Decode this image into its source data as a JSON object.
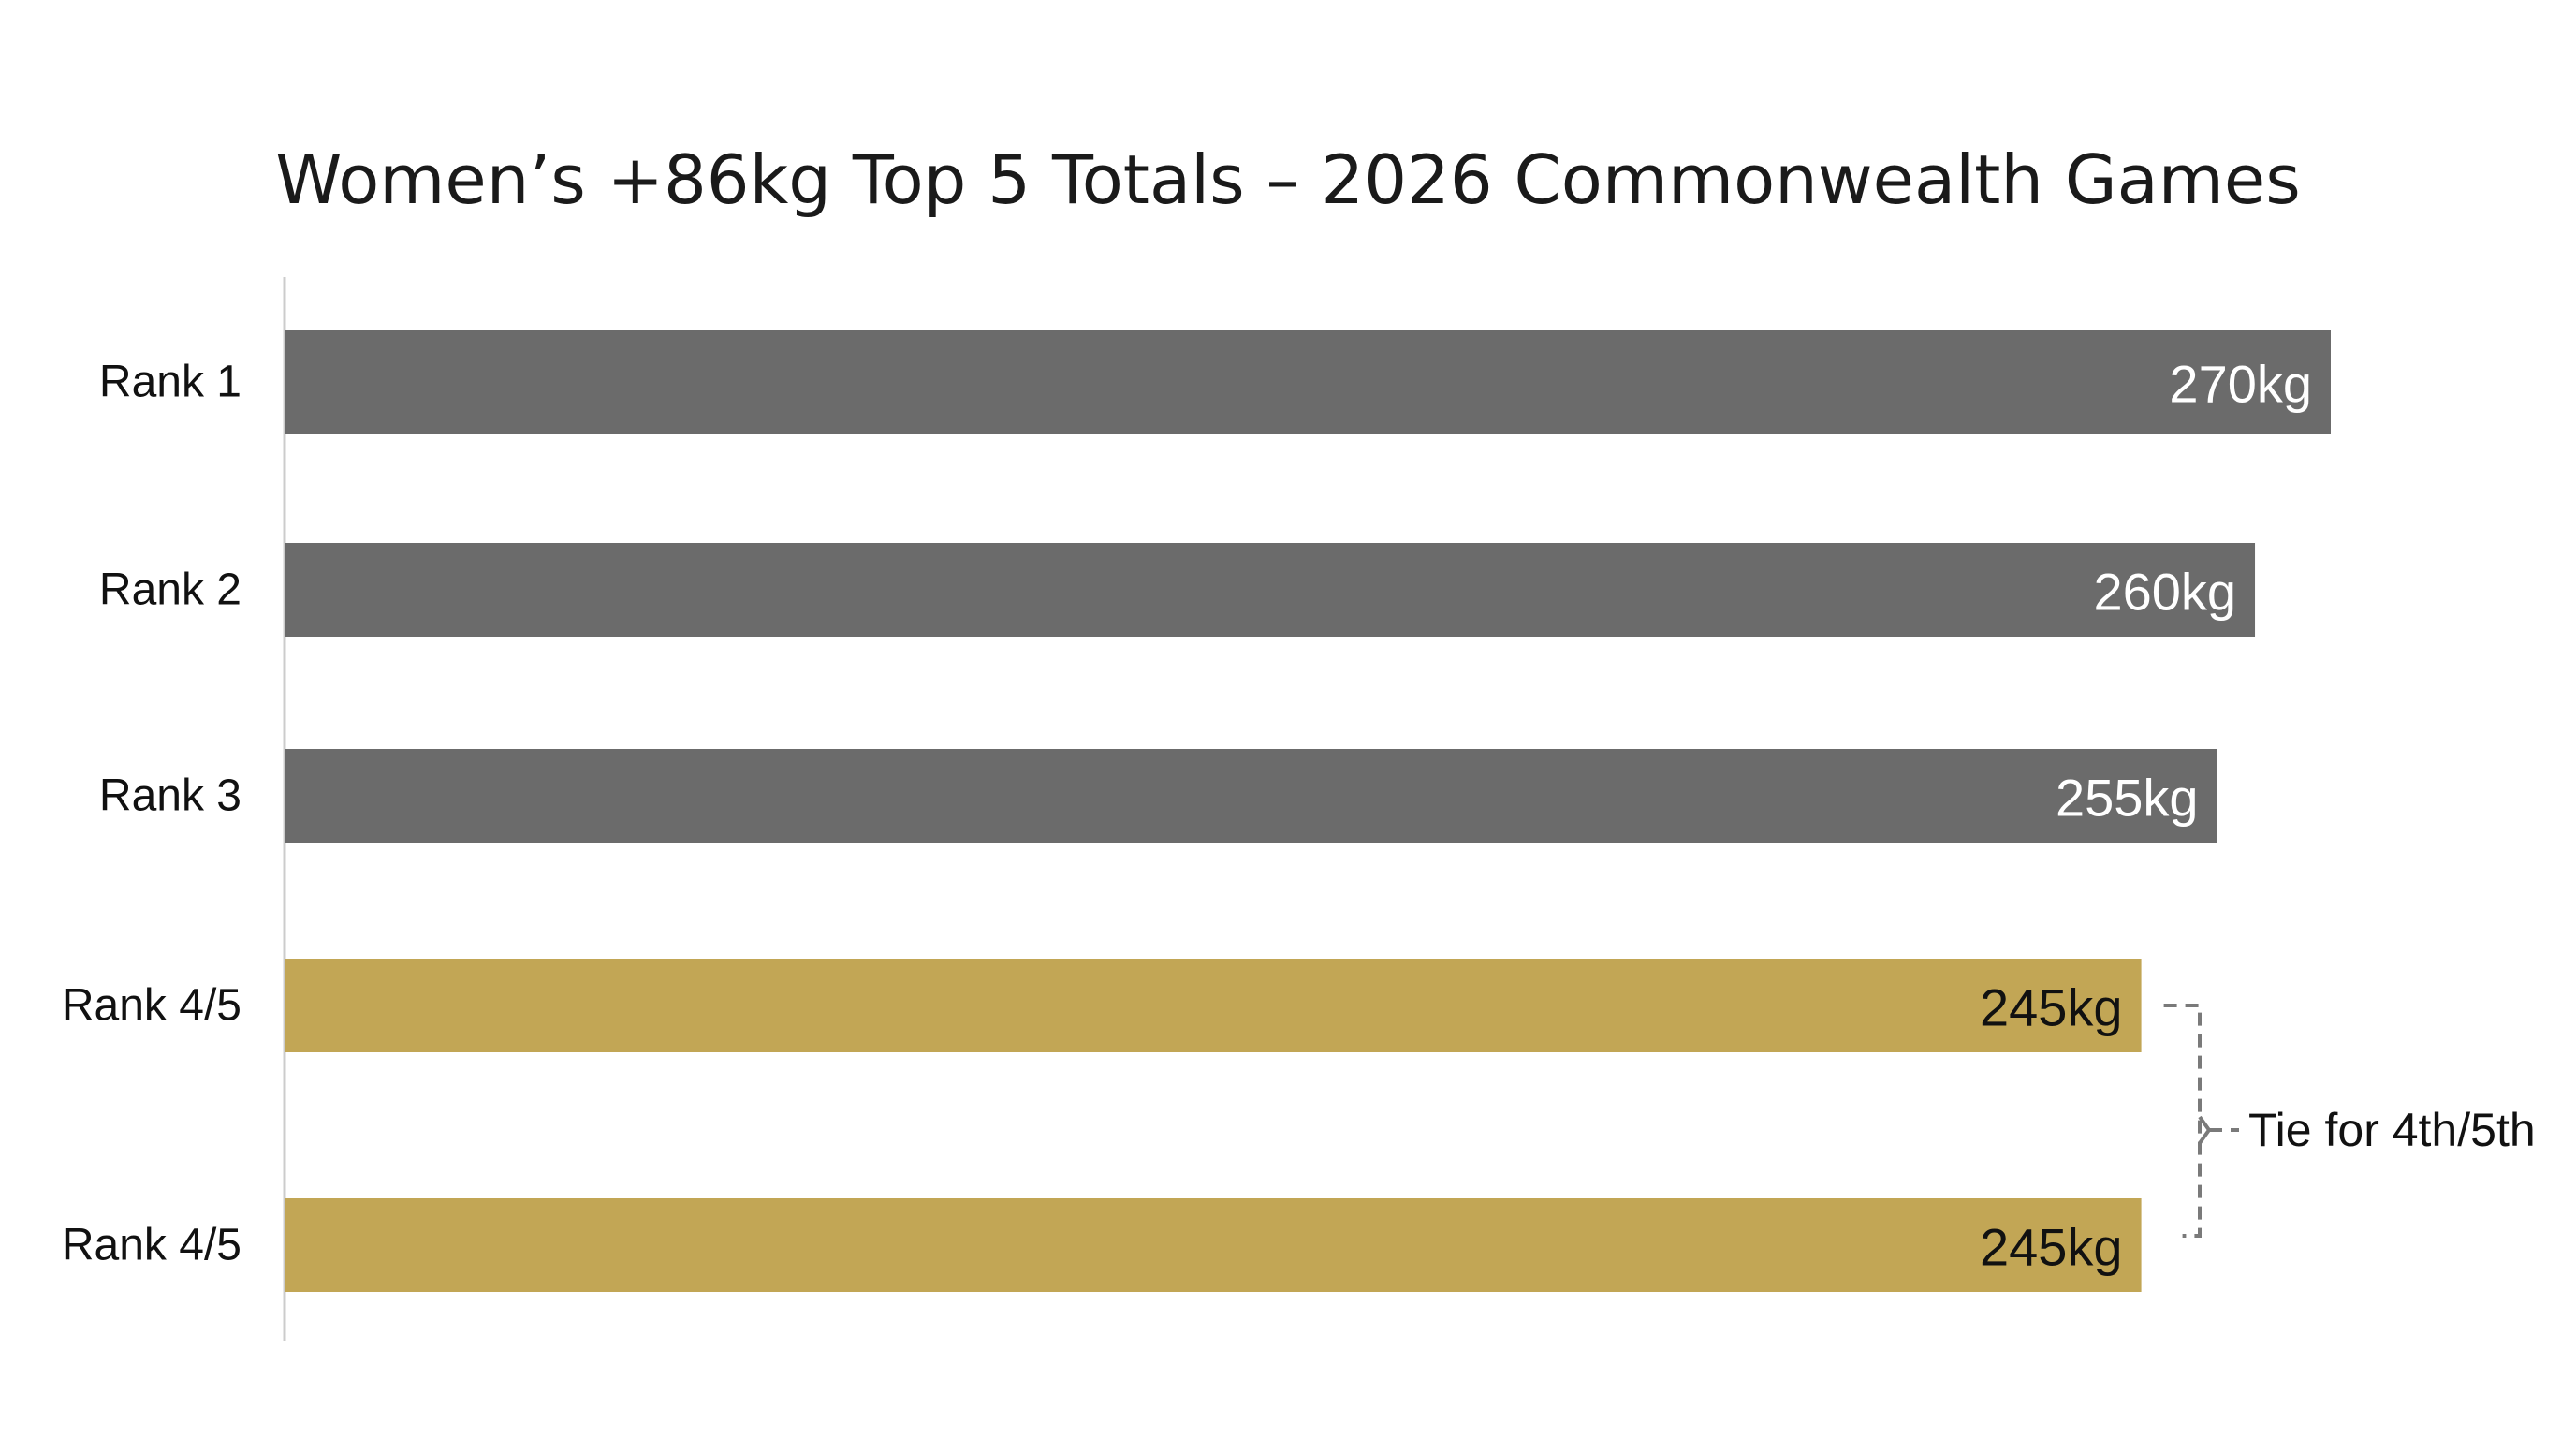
{
  "chart_data": {
    "type": "bar",
    "orientation": "horizontal",
    "title": "Women’s +86kg Top 5 Totals – 2026 Commonwealth Games",
    "categories": [
      "Rank 1",
      "Rank 2",
      "Rank 3",
      "Rank 4/5",
      "Rank 4/5"
    ],
    "values": [
      270,
      260,
      255,
      245,
      245
    ],
    "value_labels": [
      "270kg",
      "260kg",
      "255kg",
      "245kg",
      "245kg"
    ],
    "unit": "kg",
    "xlim": [
      0,
      270
    ],
    "grid": false,
    "legend": "none",
    "colors": {
      "medal": "#6b6b6b",
      "tie": "#c2a655",
      "medal_label": "#ffffff",
      "tie_label": "#111111",
      "axis": "#cccccc",
      "bracket": "#7a7a7a"
    },
    "bar_color_groups": [
      "medal",
      "medal",
      "medal",
      "tie",
      "tie"
    ],
    "annotations": [
      {
        "text": "Tie for 4th/5th",
        "bars": [
          3,
          4
        ],
        "style": "dashed-bracket"
      }
    ]
  }
}
